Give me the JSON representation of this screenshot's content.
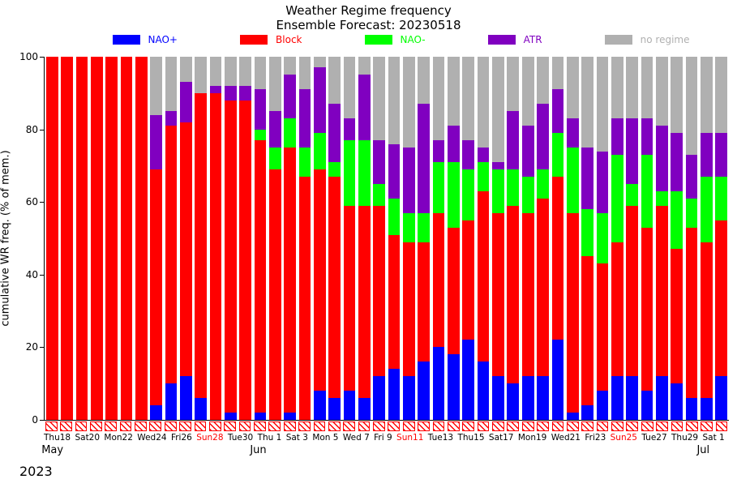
{
  "title_line1": "Weather Regime frequency",
  "title_line2": "Ensemble Forecast: 20230518",
  "ylabel": "cumulative WR freq. (% of mem.)",
  "ylim": [
    0,
    100
  ],
  "ytick_step": 20,
  "tick_fontsize": 12,
  "title_fontsize": 15,
  "background_color": "#ffffff",
  "colors": {
    "nao_plus": "#0000ff",
    "block": "#ff0000",
    "nao_minus": "#00ff00",
    "atr": "#8000c0",
    "no_regime": "#b0b0b0",
    "axis": "#000000",
    "text": "#000000",
    "sunday": "#ff0000",
    "hatch_border": "#ff0000"
  },
  "legend": [
    {
      "key": "nao_plus",
      "label": "NAO+",
      "color": "#0000ff"
    },
    {
      "key": "block",
      "label": "Block",
      "color": "#ff0000"
    },
    {
      "key": "nao_minus",
      "label": "NAO-",
      "color": "#00ff00"
    },
    {
      "key": "atr",
      "label": "ATR",
      "color": "#8000c0"
    },
    {
      "key": "no_regime",
      "label": "no regime",
      "color": "#b0b0b0"
    }
  ],
  "bar_width": 0.8,
  "days": [
    {
      "label": "Thu18",
      "sunday": false,
      "month_below": "May",
      "nao_plus": 0,
      "block": 100,
      "nao_minus": 0,
      "atr": 0,
      "no_regime": 0,
      "obs": "block"
    },
    {
      "label": "",
      "sunday": false,
      "nao_plus": 0,
      "block": 100,
      "nao_minus": 0,
      "atr": 0,
      "no_regime": 0,
      "obs": "block"
    },
    {
      "label": "Sat20",
      "sunday": false,
      "nao_plus": 0,
      "block": 100,
      "nao_minus": 0,
      "atr": 0,
      "no_regime": 0,
      "obs": "block"
    },
    {
      "label": "",
      "sunday": true,
      "nao_plus": 0,
      "block": 100,
      "nao_minus": 0,
      "atr": 0,
      "no_regime": 0,
      "obs": "block"
    },
    {
      "label": "Mon22",
      "sunday": false,
      "nao_plus": 0,
      "block": 100,
      "nao_minus": 0,
      "atr": 0,
      "no_regime": 0,
      "obs": "block"
    },
    {
      "label": "",
      "sunday": false,
      "nao_plus": 0,
      "block": 100,
      "nao_minus": 0,
      "atr": 0,
      "no_regime": 0,
      "obs": "block"
    },
    {
      "label": "Wed24",
      "sunday": false,
      "nao_plus": 0,
      "block": 100,
      "nao_minus": 0,
      "atr": 0,
      "no_regime": 0,
      "obs": "block"
    },
    {
      "label": "",
      "sunday": false,
      "nao_plus": 4,
      "block": 65,
      "nao_minus": 0,
      "atr": 15,
      "no_regime": 16,
      "obs": "block"
    },
    {
      "label": "Fri26",
      "sunday": false,
      "nao_plus": 10,
      "block": 71,
      "nao_minus": 0,
      "atr": 4,
      "no_regime": 15,
      "obs": "block"
    },
    {
      "label": "",
      "sunday": false,
      "nao_plus": 12,
      "block": 70,
      "nao_minus": 0,
      "atr": 11,
      "no_regime": 7,
      "obs": "block"
    },
    {
      "label": "Sun28",
      "sunday": true,
      "nao_plus": 6,
      "block": 84,
      "nao_minus": 0,
      "atr": 0,
      "no_regime": 10,
      "obs": "block"
    },
    {
      "label": "",
      "sunday": false,
      "nao_plus": 0,
      "block": 90,
      "nao_minus": 0,
      "atr": 2,
      "no_regime": 8,
      "obs": "block"
    },
    {
      "label": "Tue30",
      "sunday": false,
      "nao_plus": 2,
      "block": 86,
      "nao_minus": 0,
      "atr": 4,
      "no_regime": 8,
      "obs": "block"
    },
    {
      "label": "",
      "sunday": false,
      "nao_plus": 0,
      "block": 88,
      "nao_minus": 0,
      "atr": 4,
      "no_regime": 8,
      "obs": "block"
    },
    {
      "label": "Thu 1",
      "sunday": false,
      "month_below": "Jun",
      "nao_plus": 2,
      "block": 75,
      "nao_minus": 3,
      "atr": 11,
      "no_regime": 9,
      "obs": "block"
    },
    {
      "label": "",
      "sunday": false,
      "nao_plus": 0,
      "block": 69,
      "nao_minus": 6,
      "atr": 10,
      "no_regime": 15,
      "obs": "block"
    },
    {
      "label": "Sat 3",
      "sunday": false,
      "nao_plus": 2,
      "block": 73,
      "nao_minus": 8,
      "atr": 12,
      "no_regime": 5,
      "obs": "block"
    },
    {
      "label": "",
      "sunday": true,
      "nao_plus": 0,
      "block": 67,
      "nao_minus": 8,
      "atr": 16,
      "no_regime": 9,
      "obs": "block"
    },
    {
      "label": "Mon 5",
      "sunday": false,
      "nao_plus": 8,
      "block": 61,
      "nao_minus": 10,
      "atr": 18,
      "no_regime": 3,
      "obs": "block"
    },
    {
      "label": "",
      "sunday": false,
      "nao_plus": 6,
      "block": 61,
      "nao_minus": 4,
      "atr": 16,
      "no_regime": 13,
      "obs": "block"
    },
    {
      "label": "Wed 7",
      "sunday": false,
      "nao_plus": 8,
      "block": 51,
      "nao_minus": 18,
      "atr": 6,
      "no_regime": 17,
      "obs": "block"
    },
    {
      "label": "",
      "sunday": false,
      "nao_plus": 6,
      "block": 53,
      "nao_minus": 18,
      "atr": 18,
      "no_regime": 5,
      "obs": "block"
    },
    {
      "label": "Fri 9",
      "sunday": false,
      "nao_plus": 12,
      "block": 47,
      "nao_minus": 6,
      "atr": 12,
      "no_regime": 23,
      "obs": "block"
    },
    {
      "label": "",
      "sunday": false,
      "nao_plus": 14,
      "block": 37,
      "nao_minus": 10,
      "atr": 15,
      "no_regime": 24,
      "obs": "block"
    },
    {
      "label": "Sun11",
      "sunday": true,
      "nao_plus": 12,
      "block": 37,
      "nao_minus": 8,
      "atr": 18,
      "no_regime": 25,
      "obs": "block"
    },
    {
      "label": "",
      "sunday": false,
      "nao_plus": 16,
      "block": 33,
      "nao_minus": 8,
      "atr": 30,
      "no_regime": 13,
      "obs": "block"
    },
    {
      "label": "Tue13",
      "sunday": false,
      "nao_plus": 20,
      "block": 37,
      "nao_minus": 14,
      "atr": 6,
      "no_regime": 23,
      "obs": "block"
    },
    {
      "label": "",
      "sunday": false,
      "nao_plus": 18,
      "block": 35,
      "nao_minus": 18,
      "atr": 10,
      "no_regime": 19,
      "obs": "block"
    },
    {
      "label": "Thu15",
      "sunday": false,
      "nao_plus": 22,
      "block": 33,
      "nao_minus": 14,
      "atr": 8,
      "no_regime": 23,
      "obs": "block"
    },
    {
      "label": "",
      "sunday": false,
      "nao_plus": 16,
      "block": 47,
      "nao_minus": 8,
      "atr": 4,
      "no_regime": 25,
      "obs": "block"
    },
    {
      "label": "Sat17",
      "sunday": false,
      "nao_plus": 12,
      "block": 45,
      "nao_minus": 12,
      "atr": 2,
      "no_regime": 29,
      "obs": "block"
    },
    {
      "label": "",
      "sunday": true,
      "nao_plus": 10,
      "block": 49,
      "nao_minus": 10,
      "atr": 16,
      "no_regime": 15,
      "obs": "block"
    },
    {
      "label": "Mon19",
      "sunday": false,
      "nao_plus": 12,
      "block": 45,
      "nao_minus": 10,
      "atr": 14,
      "no_regime": 19,
      "obs": "block"
    },
    {
      "label": "",
      "sunday": false,
      "nao_plus": 12,
      "block": 49,
      "nao_minus": 8,
      "atr": 18,
      "no_regime": 13,
      "obs": "block"
    },
    {
      "label": "Wed21",
      "sunday": false,
      "nao_plus": 22,
      "block": 45,
      "nao_minus": 12,
      "atr": 12,
      "no_regime": 9,
      "obs": "block"
    },
    {
      "label": "",
      "sunday": false,
      "nao_plus": 2,
      "block": 55,
      "nao_minus": 18,
      "atr": 8,
      "no_regime": 17,
      "obs": "block"
    },
    {
      "label": "Fri23",
      "sunday": false,
      "nao_plus": 4,
      "block": 41,
      "nao_minus": 13,
      "atr": 17,
      "no_regime": 25,
      "obs": "block"
    },
    {
      "label": "",
      "sunday": false,
      "nao_plus": 8,
      "block": 35,
      "nao_minus": 14,
      "atr": 17,
      "no_regime": 26,
      "obs": "block"
    },
    {
      "label": "Sun25",
      "sunday": true,
      "nao_plus": 12,
      "block": 37,
      "nao_minus": 24,
      "atr": 10,
      "no_regime": 17,
      "obs": "block"
    },
    {
      "label": "",
      "sunday": false,
      "nao_plus": 12,
      "block": 47,
      "nao_minus": 6,
      "atr": 18,
      "no_regime": 17,
      "obs": "block"
    },
    {
      "label": "Tue27",
      "sunday": false,
      "nao_plus": 8,
      "block": 45,
      "nao_minus": 20,
      "atr": 10,
      "no_regime": 17,
      "obs": "block"
    },
    {
      "label": "",
      "sunday": false,
      "nao_plus": 12,
      "block": 47,
      "nao_minus": 4,
      "atr": 18,
      "no_regime": 19,
      "obs": "block"
    },
    {
      "label": "Thu29",
      "sunday": false,
      "nao_plus": 10,
      "block": 37,
      "nao_minus": 16,
      "atr": 16,
      "no_regime": 21,
      "obs": "block"
    },
    {
      "label": "",
      "sunday": false,
      "nao_plus": 6,
      "block": 47,
      "nao_minus": 8,
      "atr": 12,
      "no_regime": 27,
      "obs": "block"
    },
    {
      "label": "Sat 1",
      "sunday": false,
      "month_below": "Jul",
      "nao_plus": 6,
      "block": 43,
      "nao_minus": 18,
      "atr": 12,
      "no_regime": 21,
      "obs": "block"
    },
    {
      "label": "",
      "sunday": true,
      "nao_plus": 12,
      "block": 43,
      "nao_minus": 12,
      "atr": 12,
      "no_regime": 21,
      "obs": "block"
    }
  ],
  "year_label": "2023",
  "stack_order": [
    "nao_plus",
    "block",
    "nao_minus",
    "atr",
    "no_regime"
  ]
}
